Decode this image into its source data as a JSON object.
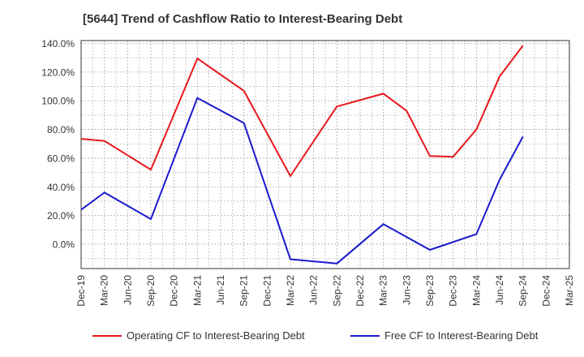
{
  "title": "[5644]  Trend of Cashflow Ratio to Interest-Bearing Debt",
  "colors": {
    "operating": "#e8171b",
    "free": "#1a1acf",
    "grid": "#aaaaaa",
    "axis": "#333333"
  },
  "chart_data": {
    "type": "line",
    "title": "[5644]  Trend of Cashflow Ratio to Interest-Bearing Debt",
    "xlabel": "",
    "ylabel": "",
    "categories": [
      "Dec-19",
      "Mar-20",
      "Jun-20",
      "Sep-20",
      "Dec-20",
      "Mar-21",
      "Jun-21",
      "Sep-21",
      "Dec-21",
      "Mar-22",
      "Jun-22",
      "Sep-22",
      "Dec-22",
      "Mar-23",
      "Jun-23",
      "Sep-23",
      "Dec-23",
      "Mar-24",
      "Jun-24",
      "Sep-24",
      "Dec-24",
      "Mar-25"
    ],
    "ylim": [
      -17,
      142
    ],
    "yticks": [
      0,
      20,
      40,
      60,
      80,
      100,
      120,
      140
    ],
    "ytick_labels": [
      "0.0%",
      "20.0%",
      "40.0%",
      "60.0%",
      "80.0%",
      "100.0%",
      "120.0%",
      "140.0%"
    ],
    "grid": true,
    "legend_position": "bottom",
    "series": [
      {
        "name": "Operating CF to Interest-Bearing Debt",
        "values": [
          73.5,
          72,
          null,
          52,
          null,
          129.5,
          null,
          107,
          null,
          47.5,
          null,
          96,
          null,
          105,
          93,
          61.5,
          61,
          80,
          117,
          138.5,
          null,
          null
        ]
      },
      {
        "name": "Free CF to Interest-Bearing Debt",
        "values": [
          24,
          36,
          null,
          17.5,
          null,
          102,
          null,
          84.5,
          null,
          -10.5,
          null,
          -13.5,
          null,
          14,
          5,
          -4,
          null,
          7,
          45,
          75,
          null,
          null
        ]
      }
    ]
  }
}
